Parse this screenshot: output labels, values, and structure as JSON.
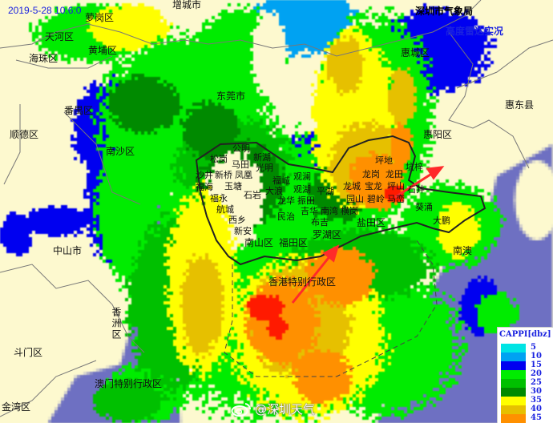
{
  "header": {
    "timestamp": "2019-5-28 10:6:0",
    "agency": "深圳市气象局",
    "product": "高度雷达实况"
  },
  "legend": {
    "title": "CAPPI[dbz]",
    "levels": [
      {
        "value": "5",
        "color": "#00e4e4"
      },
      {
        "value": "10",
        "color": "#00a2f2"
      },
      {
        "value": "15",
        "color": "#0000f0"
      },
      {
        "value": "20",
        "color": "#00ec00"
      },
      {
        "value": "25",
        "color": "#00c000"
      },
      {
        "value": "30",
        "color": "#008a00"
      },
      {
        "value": "35",
        "color": "#ffff00"
      },
      {
        "value": "40",
        "color": "#e6c000"
      },
      {
        "value": "45",
        "color": "#ff9000"
      }
    ]
  },
  "colors": {
    "land": "#fdf9cf",
    "sea": "#6e70c2",
    "arrow": "#ff2a2a",
    "strong_echo": "#ff1a00"
  },
  "labels": {
    "tianhe": "天河区",
    "haizhu": "海珠区",
    "huangpu": "黄埔区",
    "luogang": "萝岗区",
    "zengcheng": "增城市",
    "panyu": "番禺区",
    "shunde": "顺德区",
    "nansha": "南沙区",
    "zhongshan": "中山市",
    "xiangzhou": "香洲区",
    "doumen": "斗门区",
    "jinwan": "金湾区",
    "macau": "澳门特别行政区",
    "dongguan": "东莞市",
    "huicheng": "惠城区",
    "huiyang": "惠阳区",
    "huidong": "惠东县",
    "hongkong": "香港特别行政区",
    "gongming": "公明",
    "songgang": "松岗",
    "xinhu": "新湖",
    "matian": "马田",
    "guangming": "光明",
    "shajing": "沙井",
    "xinqiao": "新桥",
    "fenghuang": "凤凰",
    "fucheng": "福城",
    "guanlan": "观澜",
    "fuhai": "福海",
    "yutang": "玉塘",
    "guanhu": "观湖",
    "shiyan": "石岩",
    "dalang": "大浪",
    "pinghu": "平湖",
    "fuyong": "福永",
    "longhua": "龙华",
    "zhentian": "振田",
    "hangcheng": "航城",
    "minzhi": "民治",
    "jihua": "吉华",
    "nanwan": "南湾",
    "henggang": "横岗",
    "xixiang": "西乡",
    "buji": "布吉",
    "xinan": "新安",
    "luohu": "罗湖区",
    "nanshan": "南山区",
    "futian": "福田区",
    "pingdi": "坪地",
    "longgang": "龙岗",
    "longcheng": "龙城",
    "baolong": "宝龙",
    "longtian": "龙田",
    "kengzi": "坑梓",
    "pingshan": "坪山",
    "yuanshan": "园山",
    "biling": "碧岭",
    "maluan": "马峦",
    "shijing": "石井",
    "kuichong": "葵涌",
    "dapeng": "大鹏",
    "yantian": "盐田区",
    "nanao": "南澳"
  },
  "watermark": "@深圳天气"
}
